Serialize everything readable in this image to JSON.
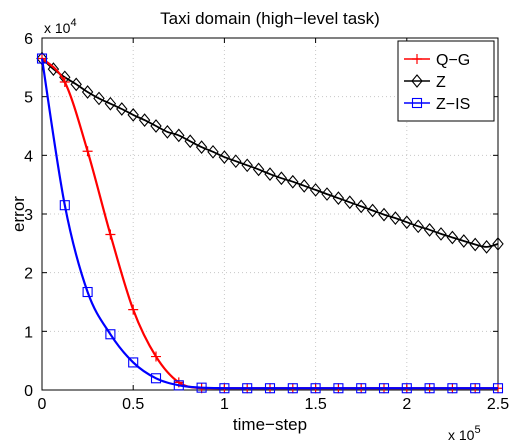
{
  "chart_data": {
    "type": "line",
    "title": "Taxi domain (high−level task)",
    "xlabel": "time−step",
    "ylabel": "error",
    "xlim": [
      0,
      2.5
    ],
    "ylim": [
      0,
      6
    ],
    "x_multiplier": {
      "base": "x 10",
      "exp": "5"
    },
    "y_multiplier": {
      "base": "x 10",
      "exp": "4"
    },
    "xticks": [
      "0",
      "0.5",
      "1",
      "1.5",
      "2",
      "2.5"
    ],
    "yticks": [
      "0",
      "1",
      "2",
      "3",
      "4",
      "5",
      "6"
    ],
    "grid": true,
    "legend_position": "top-right",
    "series": [
      {
        "name": "Q−G",
        "color": "#ff0000",
        "marker": "plus",
        "x": [
          0,
          0.125,
          0.25,
          0.375,
          0.5,
          0.625,
          0.75,
          0.875,
          1.0,
          1.125,
          1.25,
          1.375,
          1.5,
          1.625,
          1.75,
          1.875,
          2.0,
          2.125,
          2.25,
          2.375,
          2.5
        ],
        "values": [
          5.65,
          5.25,
          4.07,
          2.65,
          1.37,
          0.57,
          0.13,
          0.03,
          0.03,
          0.03,
          0.03,
          0.03,
          0.03,
          0.03,
          0.03,
          0.03,
          0.03,
          0.03,
          0.03,
          0.03,
          0.03
        ]
      },
      {
        "name": "Z",
        "color": "#000000",
        "marker": "diamond",
        "x": [
          0,
          0.0625,
          0.125,
          0.1875,
          0.25,
          0.3125,
          0.375,
          0.4375,
          0.5,
          0.5625,
          0.625,
          0.6875,
          0.75,
          0.8125,
          0.875,
          0.9375,
          1.0,
          1.0625,
          1.125,
          1.1875,
          1.25,
          1.3125,
          1.375,
          1.4375,
          1.5,
          1.5625,
          1.625,
          1.6875,
          1.75,
          1.8125,
          1.875,
          1.9375,
          2.0,
          2.0625,
          2.125,
          2.1875,
          2.25,
          2.3125,
          2.375,
          2.4375,
          2.5
        ],
        "values": [
          5.65,
          5.47,
          5.33,
          5.21,
          5.08,
          4.97,
          4.88,
          4.79,
          4.69,
          4.6,
          4.5,
          4.4,
          4.34,
          4.24,
          4.14,
          4.06,
          3.97,
          3.9,
          3.83,
          3.76,
          3.68,
          3.61,
          3.55,
          3.48,
          3.41,
          3.34,
          3.27,
          3.2,
          3.13,
          3.06,
          2.99,
          2.93,
          2.86,
          2.79,
          2.73,
          2.66,
          2.6,
          2.54,
          2.48,
          2.44,
          2.49
        ]
      },
      {
        "name": "Z−IS",
        "color": "#0000ff",
        "marker": "square",
        "x": [
          0,
          0.125,
          0.25,
          0.375,
          0.5,
          0.625,
          0.75,
          0.875,
          1.0,
          1.125,
          1.25,
          1.375,
          1.5,
          1.625,
          1.75,
          1.875,
          2.0,
          2.125,
          2.25,
          2.375,
          2.5
        ],
        "values": [
          5.65,
          3.15,
          1.67,
          0.95,
          0.47,
          0.2,
          0.08,
          0.04,
          0.03,
          0.03,
          0.03,
          0.03,
          0.03,
          0.03,
          0.03,
          0.03,
          0.03,
          0.03,
          0.03,
          0.03,
          0.03
        ]
      }
    ]
  }
}
